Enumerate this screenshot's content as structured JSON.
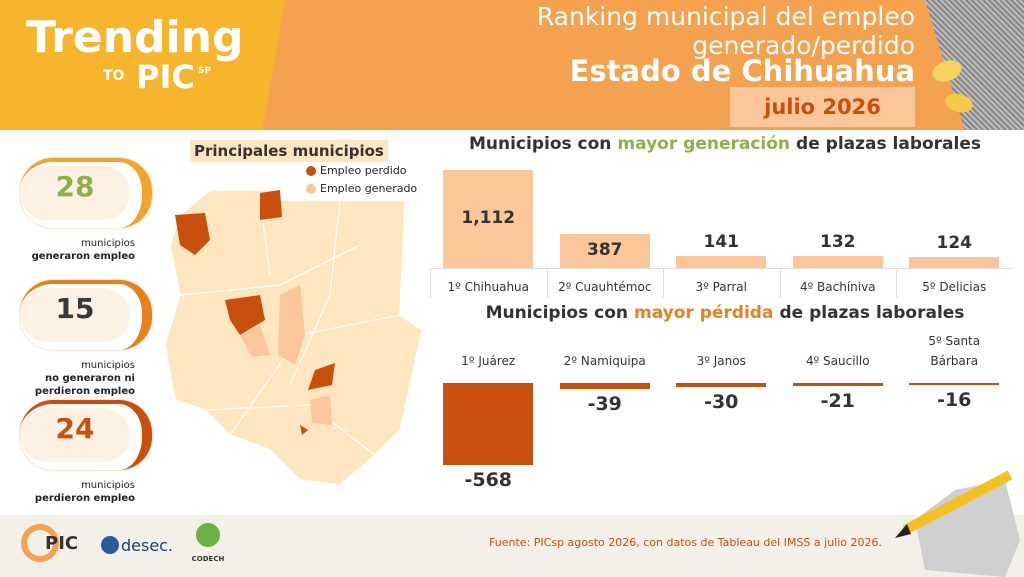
{
  "header": {
    "brand": "Trending",
    "brand_to": "TO",
    "brand_pic": "PIC",
    "brand_sp": "SP",
    "title_lines": [
      "Ranking municipal del empleo",
      "generado/perdido"
    ],
    "state": "Estado de Chihuahua",
    "period": "julio 2026"
  },
  "stats": [
    {
      "value": 28,
      "color": "#8cb04a",
      "accent": "#f2a32c",
      "lines": [
        "municipios",
        "generaron empleo"
      ]
    },
    {
      "value": 15,
      "color": "#3a3a3a",
      "accent": "#e8801c",
      "lines": [
        "municipios",
        "no generaron ni",
        "perdieron empleo"
      ]
    },
    {
      "value": 24,
      "color": "#c9500c",
      "accent": "#c9500c",
      "lines": [
        "municipios",
        "perdieron empleo"
      ]
    }
  ],
  "map": {
    "title": "Principales municipios",
    "legend": [
      {
        "name": "Empleo perdido",
        "color": "#c9500c"
      },
      {
        "name": "Empleo generado",
        "color": "#fbc79a"
      }
    ]
  },
  "chart_data": [
    {
      "type": "bar",
      "title_parts": [
        "Municipios con",
        "mayor generación",
        "de plazas laborales"
      ],
      "accent": "#8cb04a",
      "categories": [
        "1º Chihuahua",
        "2º Cuauhtémoc",
        "3º Parral",
        "4º Bachíniva",
        "5º Delicias"
      ],
      "values": [
        1112,
        387,
        141,
        132,
        124
      ],
      "value_labels": [
        "1,112",
        "387",
        "141",
        "132",
        "124"
      ],
      "color": "#fbc79a"
    },
    {
      "type": "bar",
      "title_parts": [
        "Municipios con",
        "mayor pérdida",
        "de plazas laborales"
      ],
      "accent": "#e8801c",
      "categories": [
        "1º Juárez",
        "2º Namiquipa",
        "3º Janos",
        "4º Saucillo",
        "5º Santa Bárbara"
      ],
      "values": [
        -568,
        -39,
        -30,
        -21,
        -16
      ],
      "color": "#c9500c"
    }
  ],
  "footer": {
    "source": "Fuente: PICsp agosto 2026, con datos de Tableau del IMSS a julio 2026.",
    "logos": [
      "PIC",
      "desec.",
      "CODECH"
    ]
  }
}
